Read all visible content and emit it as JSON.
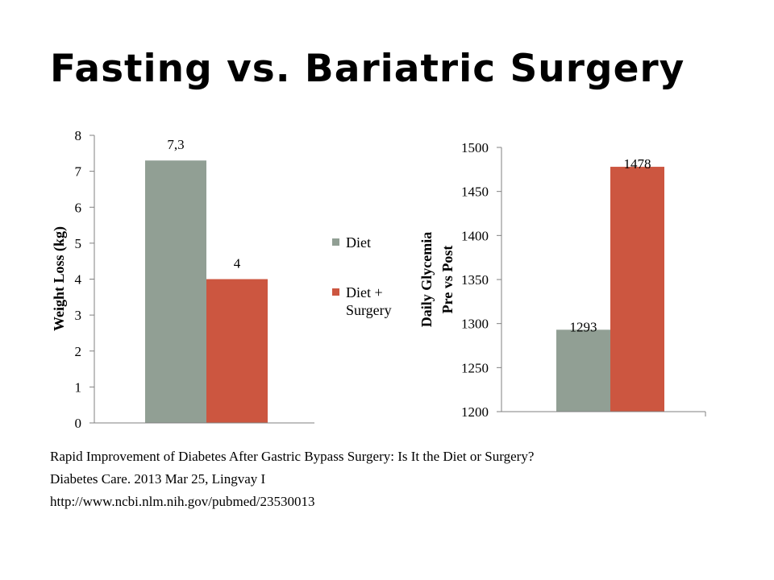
{
  "slide": {
    "title": "Fasting vs. Bariatric Surgery",
    "citation": [
      "Rapid Improvement of Diabetes After Gastric Bypass Surgery: Is It the Diet or Surgery?",
      "Diabetes Care. 2013 Mar 25, Lingvay I",
      "http://www.ncbi.nlm.nih.gov/pubmed/23530013"
    ]
  },
  "colors": {
    "diet": "#919f94",
    "diet_surgery": "#cc5640",
    "axis": "#808080"
  },
  "chart_data": [
    {
      "type": "bar",
      "categories": [
        ""
      ],
      "series": [
        {
          "name": "Diet",
          "values": [
            7.3
          ],
          "labels": [
            "7,3"
          ]
        },
        {
          "name": "Diet + Surgery",
          "values": [
            4
          ],
          "labels": [
            "4"
          ]
        }
      ],
      "ylabel": "Weight Loss (kg)",
      "ylim": [
        0,
        8
      ],
      "yticks": [
        "0",
        "1",
        "2",
        "3",
        "4",
        "5",
        "6",
        "7",
        "8"
      ],
      "legend": "right",
      "grid": false
    },
    {
      "type": "bar",
      "categories": [
        ""
      ],
      "series": [
        {
          "values": [
            1293
          ],
          "labels": [
            "1293"
          ]
        },
        {
          "values": [
            1478
          ],
          "labels": [
            "1478"
          ]
        }
      ],
      "ylabel": [
        "Daily Glycemia",
        "Pre vs Post"
      ],
      "ylim": [
        1200,
        1500
      ],
      "yticks": [
        "1200",
        "1250",
        "1300",
        "1350",
        "1400",
        "1450",
        "1500"
      ],
      "legend": "none",
      "grid": false
    }
  ]
}
